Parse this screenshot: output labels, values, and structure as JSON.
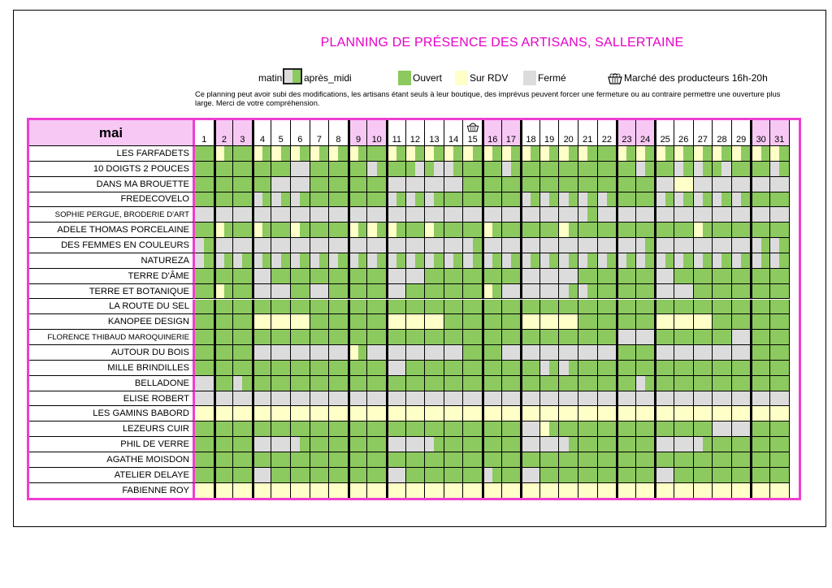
{
  "title": "PLANNING DE PRÉSENCE DES ARTISANS, SALLERTAINE",
  "legend": {
    "matin": "matin",
    "apres_midi": "après_midi",
    "ouvert": "Ouvert",
    "sur_rdv": "Sur RDV",
    "ferme": "Fermé",
    "marche": "Marché des producteurs 16h-20h"
  },
  "note": "Ce planning peut avoir subi des modifications, les artisans étant seuls à leur boutique, des imprévus peuvent forcer une fermeture ou au contraire permettre une ouverture plus large. Merci de votre compréhension.",
  "colors": {
    "ouvert": "#8cc95f",
    "rdv": "#ffffc8",
    "ferme": "#dcdcdc",
    "weekend": "#f8c8f4",
    "frame": "#ee3fd0",
    "title": "#e600c8"
  },
  "month": "mai",
  "days": [
    1,
    2,
    3,
    4,
    5,
    6,
    7,
    8,
    9,
    10,
    11,
    12,
    13,
    14,
    15,
    16,
    17,
    18,
    19,
    20,
    21,
    22,
    23,
    24,
    25,
    26,
    27,
    28,
    29,
    30,
    31
  ],
  "weekend_days": [
    2,
    3,
    9,
    10,
    16,
    17,
    23,
    24,
    30,
    31
  ],
  "market_day": 15,
  "artisans": [
    {
      "name": "LES FARFADETS",
      "codes": "OO,RO,OO,RO,RO,RO,RO,RO,RO,OO,RO,RO,RO,RO,RO,RO,RO,RO,RO,RO,RO,OO,RO,RO,RO,RO,RO,RO,RO,RO,RO"
    },
    {
      "name": "10 DOIGTS 2 POUCES",
      "codes": "OO,OO,OO,OO,OO,FF,OO,OO,OO,FO,OO,OF,OF,FO,OO,OO,FO,OO,OO,OO,OO,OO,OO,FO,OO,FO,FO,OF,OO,OO,FO"
    },
    {
      "name": "DANS MA BROUETTE",
      "codes": "OO,OO,OO,OO,FF,FF,OO,OO,OO,OO,FF,FF,FF,FF,OO,OO,OO,OO,OO,OO,OO,OO,OO,OO,FF,RR,FF,FF,FF,FF,FF"
    },
    {
      "name": "FREDECOVELO",
      "codes": "OO,OO,OO,FO,FO,FO,OO,OO,OO,OO,FO,FO,FO,OO,OO,OO,OO,FO,FO,FO,FO,FO,OO,OO,FO,FO,FO,FO,FO,OO,OO"
    },
    {
      "name": "SOPHIE PERGUE, BRODERIE D'ART",
      "codes": "FF,FF,FF,FF,FF,FF,FF,FF,FF,FF,FF,FF,FF,FF,FF,FF,FF,FF,FF,FF,FO,FF,FF,FF,FF,FF,FF,FF,FF,FF,FF"
    },
    {
      "name": "ADELE THOMAS PORCELAINE",
      "codes": "OO,RO,OO,RO,OO,RO,OO,OO,RO,RO,RO,OO,RO,OO,OO,RO,OO,OO,OO,RO,OO,OO,OO,OO,OO,OO,RO,OO,OO,OO,OO"
    },
    {
      "name": "DES FEMMES EN COULEURS",
      "codes": "FO,FF,FF,FF,FF,FF,FF,FF,FF,FF,FF,FF,FF,FF,FO,FF,FF,FF,FF,FF,FF,FF,FF,FO,FF,FF,FF,FF,FF,FO,FO"
    },
    {
      "name": "NATUREZA",
      "codes": "FO,FO,FO,FO,FO,FO,FO,FO,FO,FO,FO,FO,FO,FO,FO,FO,FO,FO,FO,FO,FO,FO,FO,FO,FO,FO,FO,FO,FO,FO,FO"
    },
    {
      "name": "TERRE D'ÂME",
      "codes": "OO,OO,OO,FF,OO,OO,OO,OO,OO,OO,FF,FF,OO,OO,OO,OO,OO,FF,FF,FF,OO,OO,OO,OO,FF,OO,OO,OO,OO,OO,OO"
    },
    {
      "name": "TERRE ET BOTANIQUE",
      "codes": "OO,RO,OO,FF,FF,OO,FF,OO,OO,OO,FF,OO,OO,OO,OO,RO,FF,FF,FF,FO,FO,OO,OO,OO,FF,FF,OO,OO,OO,OO,OO"
    },
    {
      "name": "LA ROUTE DU SEL",
      "codes": "OO,OO,OO,OO,OO,OO,OO,OO,OO,OO,OO,OO,OO,OO,OO,OO,OO,OO,OO,OO,OO,OO,OO,OO,OO,OO,OO,OO,OO,OO,OO"
    },
    {
      "name": "KANOPEE DESIGN",
      "codes": "OO,OO,OO,RR,RR,RR,OO,OO,OO,OO,RR,RR,RR,OO,OO,OO,OO,RR,RR,RR,OO,OO,OO,OO,RR,RR,RR,OO,OO,OO,OO"
    },
    {
      "name": "FLORENCE THIBAUD MAROQUINERIE",
      "codes": "OO,OO,OO,OO,OO,OO,OO,OO,OO,OO,OO,OO,OO,OO,OO,OO,OO,OO,OO,OO,OO,OO,FF,FF,OO,OO,OO,OO,FF,OO,OO"
    },
    {
      "name": "AUTOUR DU BOIS",
      "codes": "OO,OO,OO,FF,FF,FF,FF,FF,RO,FF,FF,FF,FF,FF,OO,OO,FF,FF,FF,FF,FF,FF,OO,OO,FF,FF,FF,FF,FF,OO,OO"
    },
    {
      "name": "MILLE BRINDILLES",
      "codes": "OO,OO,OO,OO,OO,OO,OO,OO,OO,OO,FF,OO,OO,OO,OO,OO,OO,OO,FO,FO,OO,OO,OO,OO,OO,OO,OO,OO,OO,OO,OO"
    },
    {
      "name": "BELLADONE",
      "codes": "FF,OO,FO,OO,OO,OO,OO,OO,OO,OO,OO,OO,OO,OO,OO,OO,OO,OO,OO,OO,OO,OO,OO,FO,OO,OO,OO,OO,OO,OO,OO"
    },
    {
      "name": "ELISE ROBERT",
      "codes": "FF,FF,FF,FF,FF,FF,FF,FF,FF,FF,FF,FF,FF,FF,FF,FF,FF,FF,FF,FF,FF,FF,FF,FF,FF,FF,FF,FF,FF,FF,FF"
    },
    {
      "name": "LES GAMINS BABORD",
      "codes": "RR,RR,RR,RR,RR,RR,RR,RR,RR,RR,RR,RR,RR,RR,RR,RR,RR,RR,RR,RR,RR,RR,RR,RR,RR,RR,RR,RR,RR,RR,RR"
    },
    {
      "name": "LEZEURS CUIR",
      "codes": "OO,OO,OO,OO,OO,OO,OO,OO,OO,OO,OO,OO,OO,OO,OO,OO,OO,FF,RO,OO,OO,OO,OO,OO,OO,OO,OO,FF,FF,OO,OO"
    },
    {
      "name": "PHIL DE VERRE",
      "codes": "OO,OO,OO,FF,FF,FO,OO,OO,OO,OO,FF,FF,FO,OO,OO,OO,OO,FF,FF,FO,OO,OO,OO,OO,FF,FF,FO,OO,OO,OO,OO"
    },
    {
      "name": "AGATHE MOISDON",
      "codes": "OO,OO,OO,OO,OO,OO,OO,OO,OO,OO,OO,OO,OO,OO,OO,OO,OO,OO,OO,OO,OO,OO,OO,OO,OO,OO,OO,OO,OO,OO,OO"
    },
    {
      "name": "ATELIER DELAYE",
      "codes": "OO,OO,OO,FF,OO,OO,OO,OO,OO,OO,FF,OO,OO,OO,OO,FO,OO,FF,OO,OO,OO,OO,OO,OO,FF,OO,OO,OO,OO,OO,OO"
    },
    {
      "name": "FABIENNE ROY",
      "codes": "RR,RR,RR,RR,RR,RR,RR,RR,RR,RR,RR,RR,RR,RR,RR,RR,RR,RR,RR,RR,RR,RR,RR,RR,RR,RR,RR,RR,RR,RR,RR"
    }
  ]
}
